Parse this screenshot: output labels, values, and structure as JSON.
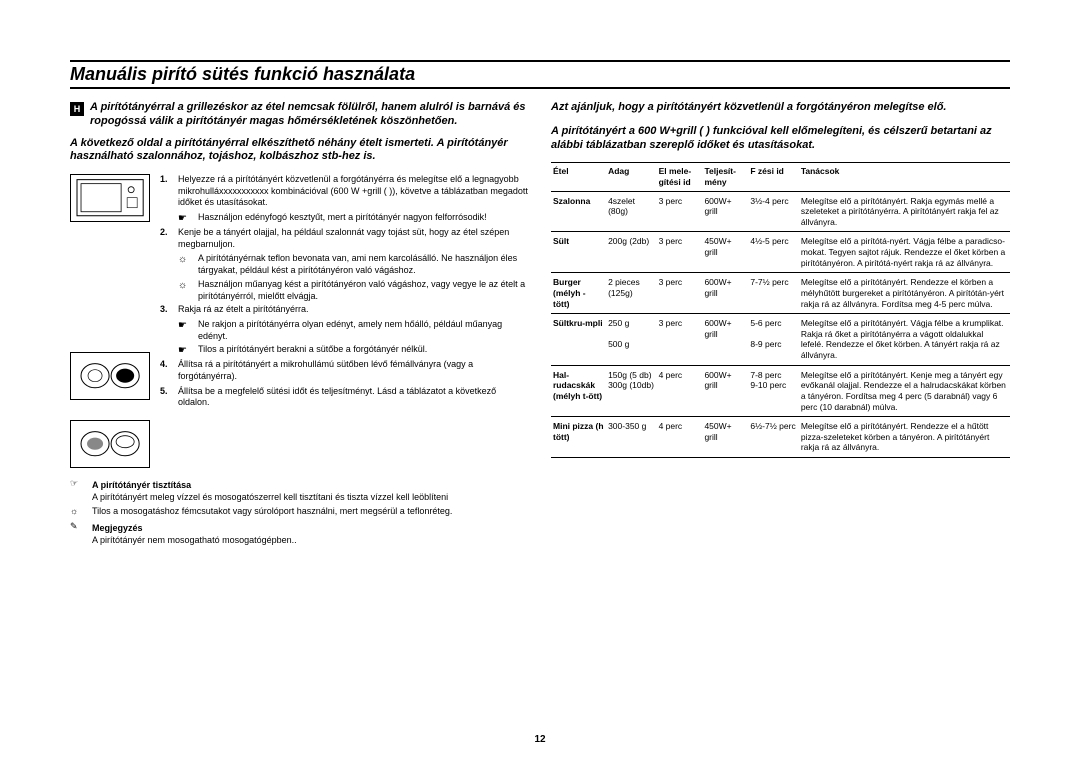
{
  "title": "Manuális pirító sütés funkció használata",
  "badge": "H",
  "left": {
    "intro1": "A pirítótányérral a grillezéskor az étel nemcsak fölülről, hanem alulról is barnává és ropogóssá válik a pirítótányér magas hőmérsékletének köszönhetően.",
    "intro2": "A következő oldal a pirítótányérral elkészíthető néhány ételt ismerteti. A pirítótányér használható szalonnához, tojáshoz, kolbászhoz stb-hez is.",
    "steps": [
      {
        "n": "1.",
        "text": "Helyezze rá a pirítótányért közvetlenül a forgótányérra és melegítse elő a legnagyobb mikrohulláxxxxxxxxxxx kombinációval (600 W +grill (    )), követve a táblázatban megadott időket és utasításokat."
      },
      {
        "bullet": "☛",
        "text": "Használjon edényfogó kesztyűt, mert a pirítótányér nagyon felforrósodik!"
      },
      {
        "n": "2.",
        "text": "Kenje be a tányért olajjal, ha például szalonnát vagy tojást süt, hogy az étel szépen megbarnuljon."
      },
      {
        "bullet": "☼",
        "text": "A pirítótányérnak teflon bevonata van, ami nem karcolásálló. Ne használjon éles tárgyakat, például kést a pirítótányéron való vágáshoz."
      },
      {
        "bullet": "☼",
        "text": "Használjon műanyag kést a pirítótányéron való vágáshoz, vagy vegye le az ételt a pirítótányérról, mielőtt elvágja."
      },
      {
        "n": "3.",
        "text": "Rakja rá az ételt a pirítótányérra."
      },
      {
        "bullet": "☛",
        "text": "Ne rakjon a pirítótányérra olyan edényt, amely nem hőálló, például műanyag edényt."
      },
      {
        "bullet": "☛",
        "text": "Tilos a pirítótányért berakni a sütőbe a forgótányér nélkül."
      },
      {
        "n": "4.",
        "text": "Állítsa rá a pirítótányért a mikrohullámú sütőben lévő fémállványra (vagy a forgótányérra)."
      },
      {
        "n": "5.",
        "text": "Állítsa be a megfelelő sütési időt és teljesítményt. Lásd a táblázatot a következő oldalon."
      }
    ],
    "cleaning_head": "A pirítótányér tisztítása",
    "cleaning_text": "A pirítótányért meleg vízzel és mosogatószerrel kell tisztítani és tiszta vízzel kell leöblíteni",
    "cleaning_warn": "Tilos a mosogatáshoz fémcsutakot vagy súrolóport használni, mert megsérül a teflonréteg.",
    "note_head": "Megjegyzés",
    "note_text": "A pirítótányér nem mosogatható mosogatógépben.."
  },
  "right": {
    "intro1": "Azt ajánljuk, hogy a pirítótányért közvetlenül a forgótányéron melegítse elő.",
    "intro2": "A pirítótányért a 600 W+grill (    ) funkcióval kell előmelegíteni, és célszerű betartani az alábbi táblázatban szereplő időket és utasításokat.",
    "headers": {
      "etel": "Étel",
      "adag": "Adag",
      "elo": "El mele-gítési id",
      "telj": "Teljesít-mény",
      "foz": "F zési id",
      "tan": "Tanácsok"
    },
    "rows": [
      {
        "etel": "Szalonna",
        "adag": "4szelet (80g)",
        "elo": "3 perc",
        "telj": "600W+ grill",
        "foz": "3½-4 perc",
        "tan": "Melegítse elő a pirítótányért. Rakja egymás mellé a szeleteket a pirítótányérra. A pirítótányért rakja fel az állványra."
      },
      {
        "etel": "Sült",
        "adag": "200g (2db)",
        "elo": "3 perc",
        "telj": "450W+ grill",
        "foz": "4½-5 perc",
        "tan": "Melegítse elő a pirítótá-nyért. Vágja félbe a paradicso-mokat. Tegyen sajtot rájuk. Rendezze el őket körben a pirítótányéron. A pirítótá-nyért rakja rá az állványra."
      },
      {
        "etel": "Burger (mélyh - tött)",
        "adag": "2 pieces (125g)",
        "elo": "3 perc",
        "telj": "600W+ grill",
        "foz": "7-7½ perc",
        "tan": "Melegítse elő a pirítótányért. Rendezze el körben a mélyhűtött burgereket a pirítótányéron. A pirítótán-yért rakja rá az állványra. Fordítsa meg 4-5 perc múlva."
      },
      {
        "etel": "Sültkru-mpli",
        "adag": "250 g\n\n500 g",
        "elo": "3 perc",
        "telj": "600W+ grill",
        "foz": "5-6 perc\n\n8-9 perc",
        "tan": "Melegítse elő a pirítótányért. Vágja félbe a krumplikat. Rakja rá őket a pirítótányérra a vágott oldalukkal lefelé. Rendezze el őket körben. A tányért rakja rá az állványra."
      },
      {
        "etel": "Hal-rudacskák (mélyh t-ött)",
        "adag": "150g (5 db) 300g (10db)",
        "elo": "4 perc",
        "telj": "600W+ grill",
        "foz": "7-8 perc\n9-10 perc",
        "tan": "Melegítse elő a pirítótányért. Kenje meg a tányért egy evőkanál olajjal. Rendezze el a halrudacskákat körben a tányéron. Fordítsa meg 4 perc (5 darabnál) vagy 6 perc (10 darabnál) múlva."
      },
      {
        "etel": "Mini pizza (h tött)",
        "adag": "300-350 g",
        "elo": "4 perc",
        "telj": "450W+ grill",
        "foz": "6½-7½ perc",
        "tan": "Melegítse elő a pirítótányért. Rendezze el a hűtött pizza-szeleteket körben a tányéron. A pirítótányért rakja rá az állványra."
      }
    ]
  },
  "pagenum": "12"
}
